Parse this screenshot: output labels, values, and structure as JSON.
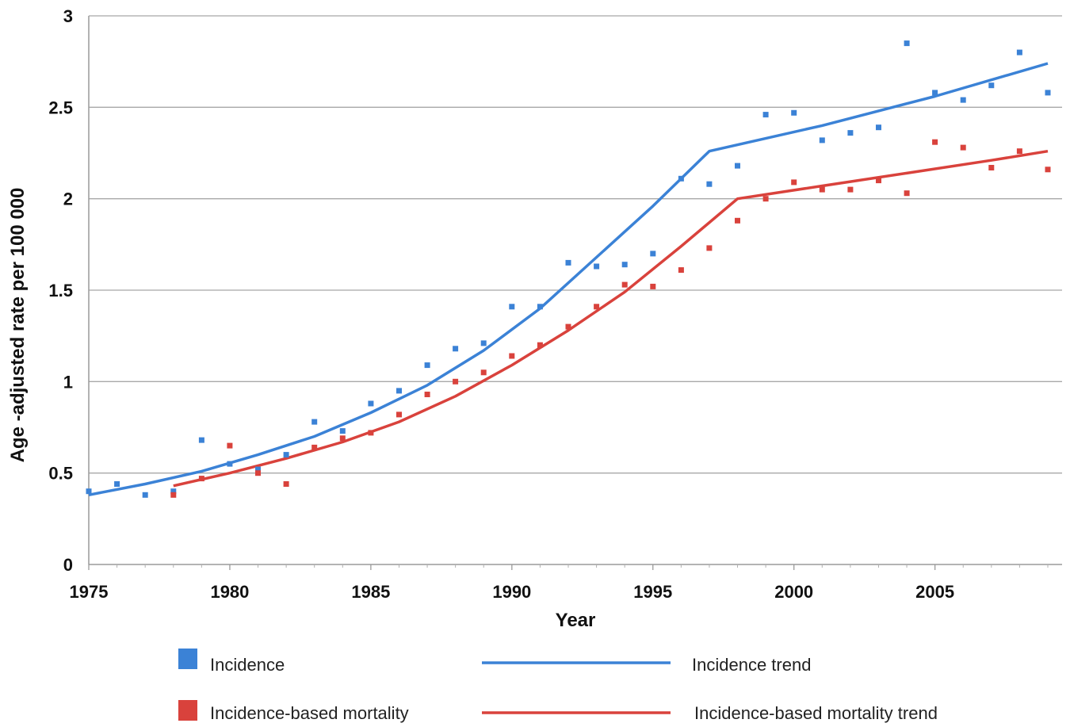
{
  "chart_data": {
    "type": "scatter",
    "xlabel": "Year",
    "ylabel": "Age -adjusted rate per 100 000",
    "xlim": [
      1975,
      2009
    ],
    "ylim": [
      0,
      3
    ],
    "x_ticks": [
      1975,
      1980,
      1985,
      1990,
      1995,
      2000,
      2005
    ],
    "y_ticks": [
      0,
      0.5,
      1,
      1.5,
      2,
      2.5,
      3
    ],
    "y_tick_labels": [
      "0",
      "0.5",
      "1",
      "1.5",
      "2",
      "2.5",
      "3"
    ],
    "grid": "horizontal",
    "legend_position": "bottom",
    "series": [
      {
        "name": "Incidence",
        "kind": "points",
        "color": "#3b82d6",
        "x": [
          1975,
          1976,
          1977,
          1978,
          1979,
          1980,
          1981,
          1982,
          1983,
          1984,
          1985,
          1986,
          1987,
          1988,
          1989,
          1990,
          1991,
          1992,
          1993,
          1994,
          1995,
          1996,
          1997,
          1998,
          1999,
          2000,
          2001,
          2002,
          2003,
          2004,
          2005,
          2006,
          2007,
          2008,
          2009
        ],
        "y": [
          0.4,
          0.44,
          0.38,
          0.4,
          0.68,
          0.55,
          0.52,
          0.6,
          0.78,
          0.73,
          0.88,
          0.95,
          1.09,
          1.18,
          1.21,
          1.41,
          1.41,
          1.65,
          1.63,
          1.64,
          1.7,
          2.11,
          2.08,
          2.18,
          2.46,
          2.47,
          2.32,
          2.36,
          2.39,
          2.85,
          2.58,
          2.54,
          2.62,
          2.8,
          2.58
        ]
      },
      {
        "name": "Incidence-based mortality",
        "kind": "points",
        "color": "#d9423c",
        "x": [
          1978,
          1979,
          1980,
          1981,
          1982,
          1983,
          1984,
          1985,
          1986,
          1987,
          1988,
          1989,
          1990,
          1991,
          1992,
          1993,
          1994,
          1995,
          1996,
          1997,
          1998,
          1999,
          2000,
          2001,
          2002,
          2003,
          2004,
          2005,
          2006,
          2007,
          2008,
          2009
        ],
        "y": [
          0.38,
          0.47,
          0.65,
          0.5,
          0.44,
          0.64,
          0.69,
          0.72,
          0.82,
          0.93,
          1.0,
          1.05,
          1.14,
          1.2,
          1.3,
          1.41,
          1.53,
          1.52,
          1.61,
          1.73,
          1.88,
          2.0,
          2.09,
          2.05,
          2.05,
          2.1,
          2.03,
          2.31,
          2.28,
          2.17,
          2.26,
          2.16
        ]
      },
      {
        "name": "Incidence trend",
        "kind": "line",
        "color": "#3b82d6",
        "x": [
          1975,
          1977,
          1979,
          1981,
          1983,
          1985,
          1987,
          1989,
          1991,
          1993,
          1995,
          1997,
          2001,
          2005,
          2009
        ],
        "y": [
          0.38,
          0.44,
          0.51,
          0.6,
          0.7,
          0.83,
          0.98,
          1.17,
          1.4,
          1.68,
          1.96,
          2.26,
          2.4,
          2.56,
          2.74
        ]
      },
      {
        "name": "Incidence-based mortality trend",
        "kind": "line",
        "color": "#d9423c",
        "x": [
          1978,
          1980,
          1982,
          1984,
          1986,
          1988,
          1990,
          1992,
          1994,
          1996,
          1998,
          2001,
          2004,
          2007,
          2009
        ],
        "y": [
          0.43,
          0.5,
          0.58,
          0.67,
          0.78,
          0.92,
          1.09,
          1.28,
          1.49,
          1.74,
          2.0,
          2.07,
          2.14,
          2.21,
          2.26
        ]
      }
    ]
  }
}
